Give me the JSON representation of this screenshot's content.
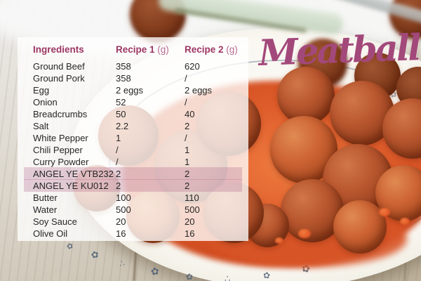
{
  "title": "Meatball",
  "table": {
    "columns": [
      {
        "label": "Ingredients",
        "unit": ""
      },
      {
        "label": "Recipe 1",
        "unit": "(g)"
      },
      {
        "label": "Recipe 2",
        "unit": "(g)"
      }
    ],
    "rows": [
      {
        "ingredient": "Ground Beef",
        "recipe1": "358",
        "recipe2": "620",
        "highlight": false
      },
      {
        "ingredient": "Ground Pork",
        "recipe1": "358",
        "recipe2": "/",
        "highlight": false
      },
      {
        "ingredient": "Egg",
        "recipe1": "2 eggs",
        "recipe2": "2 eggs",
        "highlight": false
      },
      {
        "ingredient": "Onion",
        "recipe1": "52",
        "recipe2": "/",
        "highlight": false
      },
      {
        "ingredient": "Breadcrumbs",
        "recipe1": "50",
        "recipe2": "40",
        "highlight": false
      },
      {
        "ingredient": "Salt",
        "recipe1": "2.2",
        "recipe2": "2",
        "highlight": false
      },
      {
        "ingredient": "White Pepper",
        "recipe1": "1",
        "recipe2": "/",
        "highlight": false
      },
      {
        "ingredient": "Chili Pepper",
        "recipe1": "/",
        "recipe2": "1",
        "highlight": false
      },
      {
        "ingredient": "Curry Powder",
        "recipe1": "/",
        "recipe2": "1",
        "highlight": false
      },
      {
        "ingredient": "ANGEL YE VTB232",
        "recipe1": "2",
        "recipe2": "2",
        "highlight": true
      },
      {
        "ingredient": "ANGEL YE KU012",
        "recipe1": "2",
        "recipe2": "2",
        "highlight": true
      },
      {
        "ingredient": "Butter",
        "recipe1": "100",
        "recipe2": "110",
        "highlight": false
      },
      {
        "ingredient": "Water",
        "recipe1": "500",
        "recipe2": "500",
        "highlight": false
      },
      {
        "ingredient": "Soy Sauce",
        "recipe1": "20",
        "recipe2": "20",
        "highlight": false
      },
      {
        "ingredient": "Olive Oil",
        "recipe1": "16",
        "recipe2": "16",
        "highlight": false
      }
    ]
  },
  "colors": {
    "accent": "#a3487a",
    "header": "#9c3663",
    "unit": "#b66a92",
    "text": "#262626",
    "highlight": "rgba(172,94,132,0.28)",
    "sprig": "#4a5d73"
  },
  "icons": {
    "floral-sprig": "✿",
    "dot-cluster": "∴"
  }
}
